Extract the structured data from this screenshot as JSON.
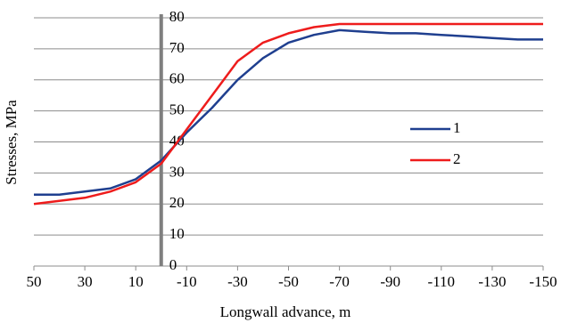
{
  "chart_data": {
    "type": "line",
    "x_label": "Longwall advance, m",
    "y_label": "Stresses, MPa",
    "x": [
      50,
      40,
      30,
      20,
      10,
      0,
      -10,
      -20,
      -30,
      -40,
      -50,
      -60,
      -70,
      -80,
      -90,
      -100,
      -110,
      -120,
      -130,
      -140,
      -150
    ],
    "series": [
      {
        "name": "1",
        "color": "#1f3f8f",
        "values": [
          23,
          23,
          24,
          25,
          28,
          34,
          43,
          51,
          60,
          67,
          72,
          74.5,
          76,
          75.5,
          75,
          75,
          74.5,
          74,
          73.5,
          73,
          73
        ]
      },
      {
        "name": "2",
        "color": "#ee1c1c",
        "values": [
          20,
          21,
          22,
          24,
          27,
          33,
          44,
          55,
          66,
          72,
          75,
          77,
          78,
          78,
          78,
          78,
          78,
          78,
          78,
          78,
          78
        ]
      }
    ],
    "xlim": [
      50,
      -150
    ],
    "xticks": [
      50,
      30,
      10,
      -10,
      -30,
      -50,
      -70,
      -90,
      -110,
      -130,
      -150
    ],
    "ylim": [
      0,
      80
    ],
    "yticks": [
      0,
      10,
      20,
      30,
      40,
      50,
      60,
      70,
      80
    ],
    "grid": true
  }
}
